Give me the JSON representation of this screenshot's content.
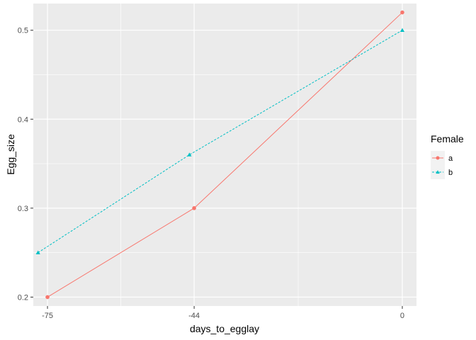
{
  "chart_data": {
    "type": "line",
    "xlabel": "days_to_egglay",
    "ylabel": "Egg_size",
    "xlim": [
      -78,
      3
    ],
    "ylim": [
      0.19,
      0.53
    ],
    "x_ticks": [
      -75,
      -44,
      0
    ],
    "x_tick_labels": [
      "-75",
      "-44",
      "0"
    ],
    "y_ticks": [
      0.2,
      0.3,
      0.4,
      0.5
    ],
    "y_tick_labels": [
      "0.2",
      "0.3",
      "0.4",
      "0.5"
    ],
    "grid": true,
    "legend": {
      "title": "Female",
      "position": "right"
    },
    "series": [
      {
        "name": "a",
        "color": "#F8766D",
        "line": "solid",
        "marker": "circle",
        "x": [
          -75,
          -44,
          0
        ],
        "y": [
          0.2,
          0.3,
          0.52
        ]
      },
      {
        "name": "b",
        "color": "#00BFC4",
        "line": "dashed",
        "marker": "triangle",
        "x": [
          -77,
          -45,
          0
        ],
        "y": [
          0.25,
          0.36,
          0.5
        ]
      }
    ]
  }
}
